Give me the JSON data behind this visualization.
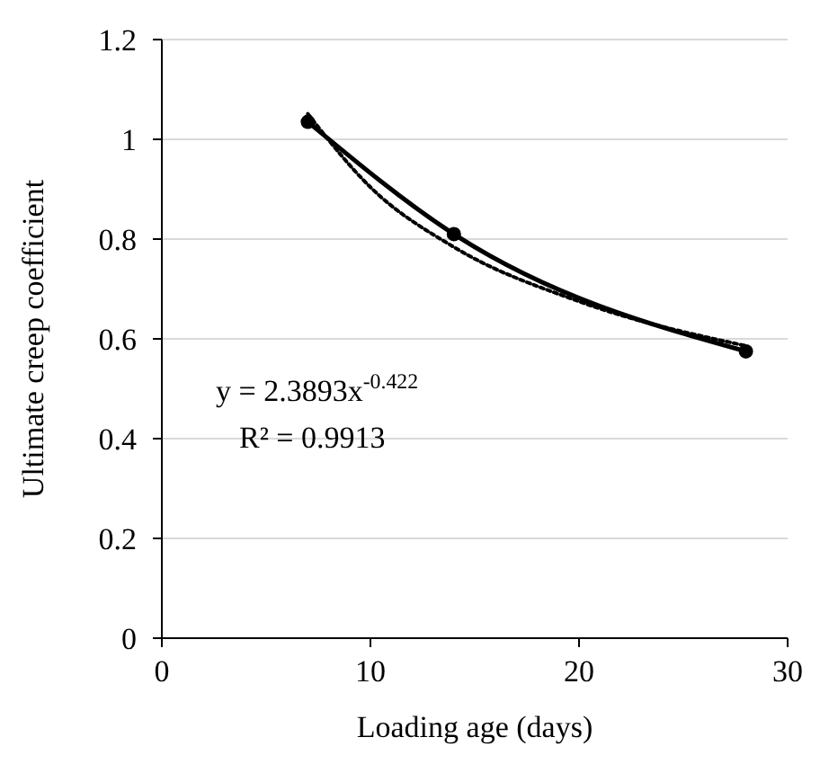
{
  "chart_data": {
    "type": "line",
    "xlabel": "Loading age (days)",
    "ylabel": "Ultimate creep coefficient",
    "xlim": [
      0,
      30
    ],
    "xticks": [
      0,
      10,
      20,
      30
    ],
    "ylim": [
      0,
      1.2
    ],
    "yticks": [
      0,
      0.2,
      0.4,
      0.6,
      0.8,
      1,
      1.2
    ],
    "grid": "y",
    "series": [
      {
        "color": "#000000",
        "x": [
          7,
          14,
          28
        ],
        "values": [
          1.035,
          0.81,
          0.575
        ],
        "marker": "circle",
        "line_style": "solid"
      },
      {
        "color": "#000000",
        "x": [
          7,
          10,
          14,
          20,
          28
        ],
        "values": [
          1.051,
          0.904,
          0.784,
          0.675,
          0.586
        ],
        "marker": "none",
        "line_style": "dotted"
      }
    ],
    "annotations": [
      "y = 2.3893x$^{-0.422}$",
      "R² = 0.9913"
    ]
  }
}
